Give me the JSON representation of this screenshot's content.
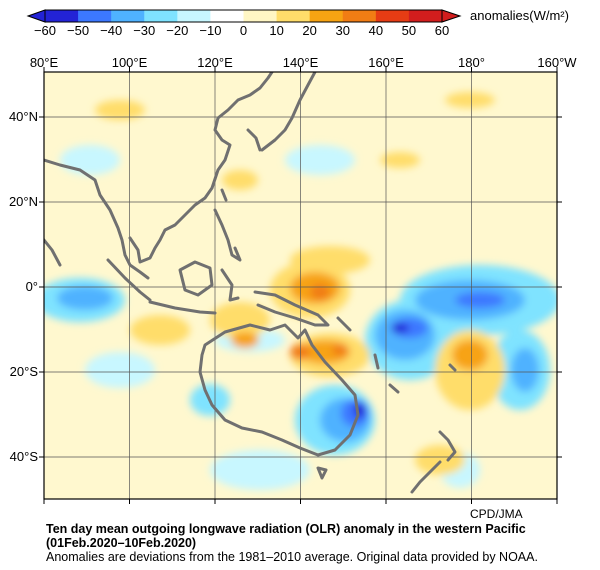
{
  "colorbar": {
    "ticks": [
      "−60",
      "−50",
      "−40",
      "−30",
      "−20",
      "−10",
      "0",
      "10",
      "20",
      "30",
      "40",
      "50",
      "60"
    ],
    "colors": [
      "#2323d6",
      "#3c78ff",
      "#4fb2ff",
      "#7fe3ff",
      "#c8f7ff",
      "#ffffff",
      "#fff6c4",
      "#ffdd6a",
      "#f7a312",
      "#f17d14",
      "#e63c14",
      "#d21d1d"
    ],
    "units_label": "anomalies(W/m²)"
  },
  "map": {
    "lon_labels": [
      "80°E",
      "100°E",
      "120°E",
      "140°E",
      "160°E",
      "180°",
      "160°W"
    ],
    "lat_labels": [
      "40°N",
      "20°N",
      "0°",
      "20°S",
      "40°S"
    ],
    "land_color": "#707070",
    "grid_color": "#555555"
  },
  "credit": "CPD/JMA",
  "title_line1": "Ten day mean outgoing longwave radiation (OLR) anomaly in the western Pacific",
  "title_line2": "(01Feb.2020–10Feb.2020)",
  "note": "Anomalies are deviations from the 1981–2010 average. Original data provided by NOAA."
}
